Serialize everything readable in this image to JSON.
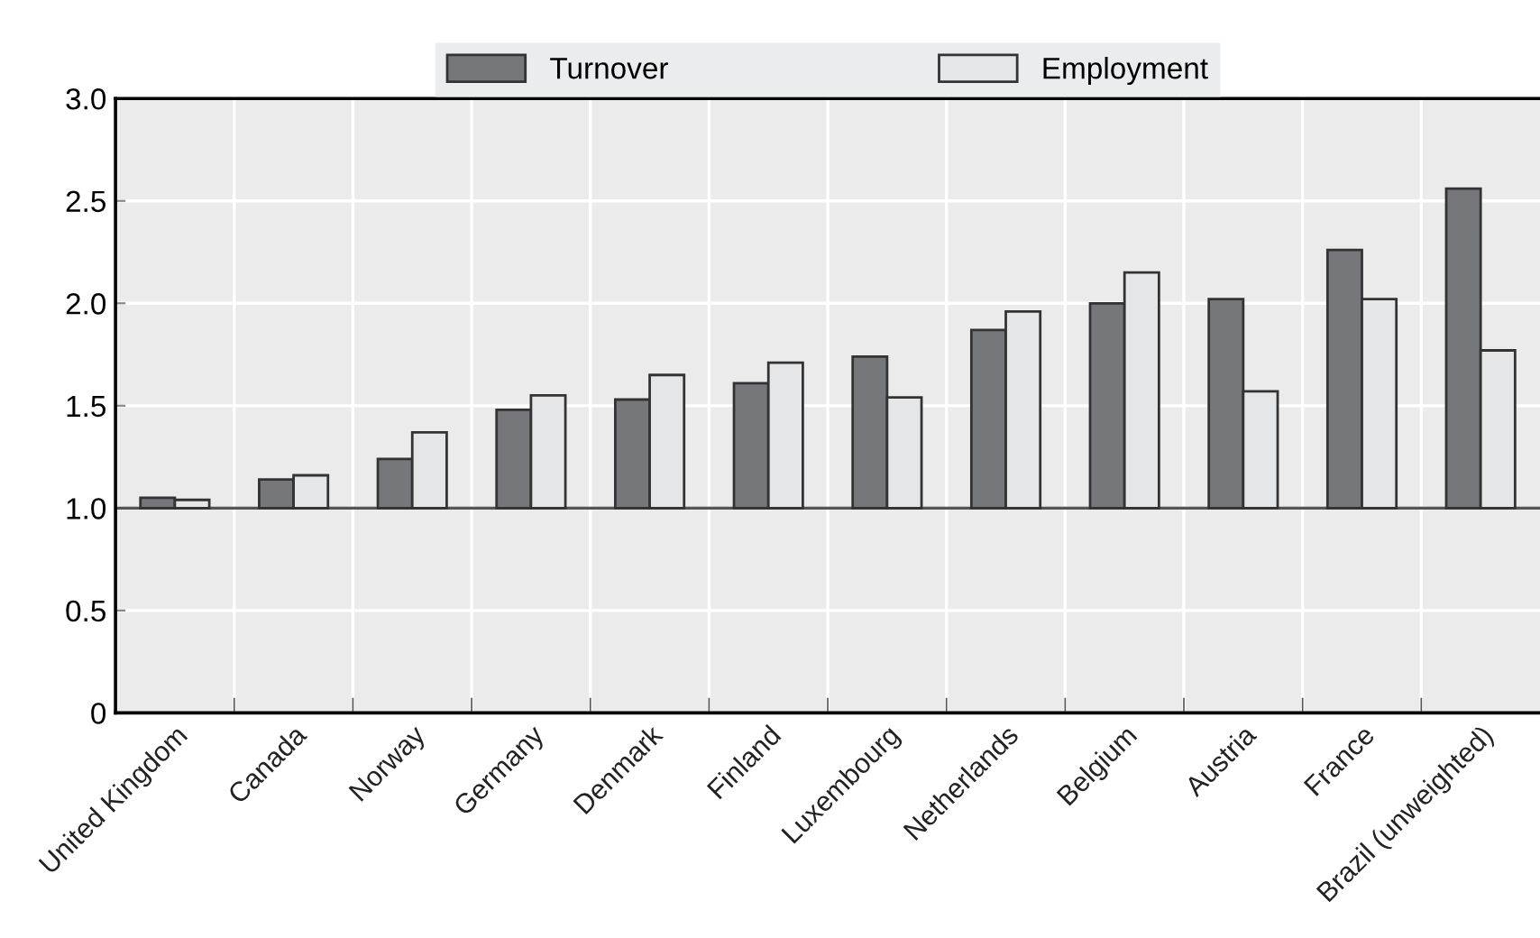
{
  "chart_data": {
    "type": "bar",
    "categories": [
      "United Kingdom",
      "Canada",
      "Norway",
      "Germany",
      "Denmark",
      "Finland",
      "Luxembourg",
      "Netherlands",
      "Belgium",
      "Austria",
      "France",
      "Brazil (unweighted)"
    ],
    "series": [
      {
        "name": "Turnover",
        "color": "#76777b",
        "base": [
          1,
          1,
          1,
          1,
          1,
          1,
          1,
          1,
          1,
          1,
          1,
          1
        ],
        "values": [
          0.05,
          0.14,
          0.24,
          0.48,
          0.53,
          0.61,
          0.74,
          0.87,
          1.0,
          1.02,
          1.26,
          1.56
        ]
      },
      {
        "name": "Employment",
        "color": "#e5e6e8",
        "base": [
          1,
          1,
          1,
          1,
          1,
          1,
          1,
          1,
          1,
          1,
          1,
          1
        ],
        "values": [
          0.04,
          0.16,
          0.37,
          0.55,
          0.65,
          0.71,
          0.54,
          0.96,
          1.15,
          0.57,
          1.02,
          0.77
        ]
      }
    ],
    "ylim": [
      0,
      3.0
    ],
    "yticks": [
      {
        "value": 0,
        "label": "0"
      },
      {
        "value": 0.5,
        "label": "0.5"
      },
      {
        "value": 1.0,
        "label": "1.0"
      },
      {
        "value": 1.5,
        "label": "1.5"
      },
      {
        "value": 2.0,
        "label": "2.0"
      },
      {
        "value": 2.5,
        "label": "2.5"
      },
      {
        "value": 3.0,
        "label": "3.0"
      }
    ],
    "ref_lines": [
      {
        "axis": "y",
        "value": 1.0,
        "color": "#555555"
      }
    ],
    "grid": true,
    "legend": "top"
  }
}
